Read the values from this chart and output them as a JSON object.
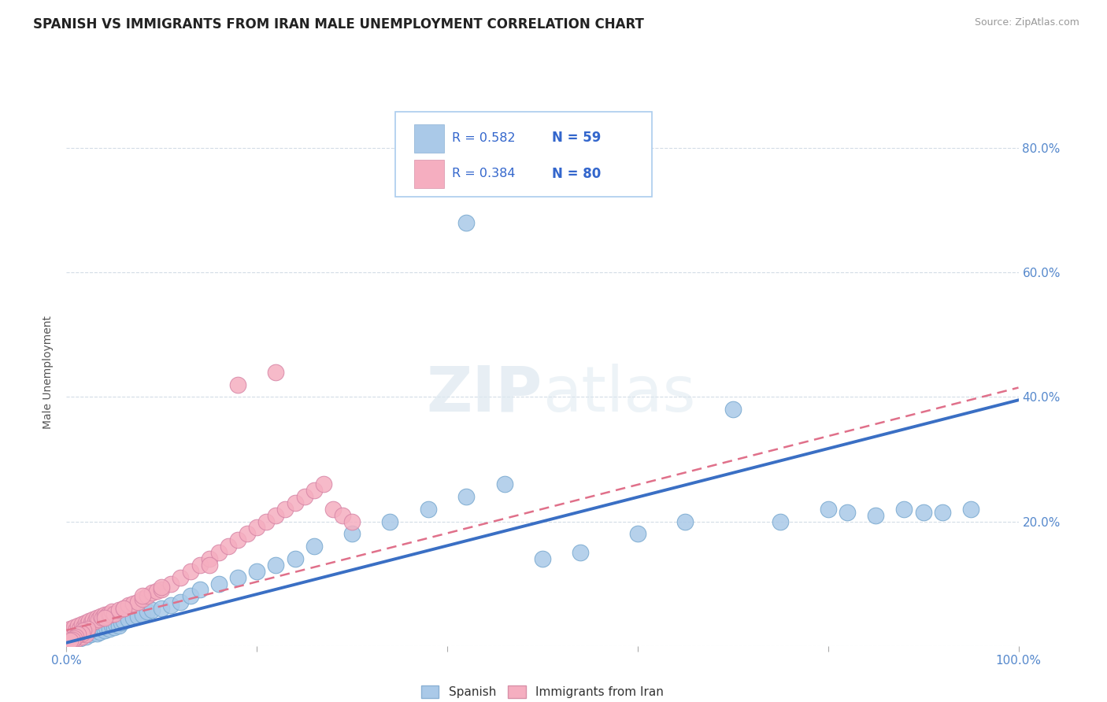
{
  "title": "SPANISH VS IMMIGRANTS FROM IRAN MALE UNEMPLOYMENT CORRELATION CHART",
  "source": "Source: ZipAtlas.com",
  "ylabel": "Male Unemployment",
  "xlim": [
    0,
    1
  ],
  "ylim": [
    0,
    0.88
  ],
  "xtick_positions": [
    0.0,
    0.2,
    0.4,
    0.6,
    0.8,
    1.0
  ],
  "xtick_labels": [
    "0.0%",
    "",
    "",
    "",
    "",
    "100.0%"
  ],
  "ytick_positions": [
    0.0,
    0.2,
    0.4,
    0.6,
    0.8
  ],
  "ytick_labels": [
    "",
    "20.0%",
    "40.0%",
    "60.0%",
    "80.0%"
  ],
  "legend_r1": "R = 0.582",
  "legend_n1": "N = 59",
  "legend_r2": "R = 0.384",
  "legend_n2": "N = 80",
  "spanish_color": "#aac9e8",
  "iran_color": "#f5aec0",
  "trend_blue": "#3a6fc4",
  "trend_pink": "#e0708a",
  "background_color": "#ffffff",
  "grid_color": "#c8d4e0",
  "watermark": "ZIPatlas",
  "title_fontsize": 12,
  "tick_color": "#5588cc",
  "note_color": "#999999",
  "spanish_x": [
    0.005,
    0.008,
    0.01,
    0.012,
    0.015,
    0.018,
    0.02,
    0.022,
    0.025,
    0.028,
    0.03,
    0.032,
    0.035,
    0.038,
    0.04,
    0.042,
    0.045,
    0.048,
    0.05,
    0.052,
    0.055,
    0.058,
    0.06,
    0.065,
    0.07,
    0.075,
    0.08,
    0.085,
    0.09,
    0.1,
    0.11,
    0.12,
    0.13,
    0.14,
    0.16,
    0.18,
    0.2,
    0.22,
    0.24,
    0.26,
    0.3,
    0.34,
    0.38,
    0.42,
    0.46,
    0.5,
    0.54,
    0.6,
    0.65,
    0.7,
    0.75,
    0.8,
    0.82,
    0.85,
    0.88,
    0.9,
    0.92,
    0.95,
    0.42
  ],
  "spanish_y": [
    0.008,
    0.01,
    0.012,
    0.015,
    0.012,
    0.018,
    0.015,
    0.02,
    0.018,
    0.022,
    0.025,
    0.02,
    0.022,
    0.028,
    0.025,
    0.03,
    0.028,
    0.032,
    0.03,
    0.035,
    0.032,
    0.038,
    0.04,
    0.042,
    0.045,
    0.048,
    0.05,
    0.055,
    0.058,
    0.06,
    0.065,
    0.07,
    0.08,
    0.09,
    0.1,
    0.11,
    0.12,
    0.13,
    0.14,
    0.16,
    0.18,
    0.2,
    0.22,
    0.24,
    0.26,
    0.14,
    0.15,
    0.18,
    0.2,
    0.38,
    0.2,
    0.22,
    0.215,
    0.21,
    0.22,
    0.215,
    0.215,
    0.22,
    0.68
  ],
  "iran_x": [
    0.002,
    0.004,
    0.006,
    0.008,
    0.01,
    0.012,
    0.014,
    0.016,
    0.018,
    0.02,
    0.002,
    0.004,
    0.006,
    0.008,
    0.01,
    0.012,
    0.014,
    0.016,
    0.018,
    0.02,
    0.022,
    0.024,
    0.026,
    0.028,
    0.03,
    0.032,
    0.034,
    0.036,
    0.038,
    0.04,
    0.042,
    0.044,
    0.046,
    0.048,
    0.05,
    0.055,
    0.06,
    0.065,
    0.07,
    0.075,
    0.08,
    0.085,
    0.09,
    0.095,
    0.1,
    0.11,
    0.12,
    0.13,
    0.14,
    0.15,
    0.16,
    0.17,
    0.18,
    0.19,
    0.2,
    0.21,
    0.22,
    0.23,
    0.24,
    0.25,
    0.26,
    0.27,
    0.28,
    0.29,
    0.3,
    0.22,
    0.18,
    0.15,
    0.1,
    0.08,
    0.06,
    0.04,
    0.022,
    0.018,
    0.016,
    0.012,
    0.01,
    0.008,
    0.006,
    0.004
  ],
  "iran_y": [
    0.005,
    0.008,
    0.01,
    0.012,
    0.015,
    0.012,
    0.018,
    0.015,
    0.02,
    0.018,
    0.025,
    0.028,
    0.022,
    0.03,
    0.025,
    0.032,
    0.028,
    0.035,
    0.03,
    0.038,
    0.035,
    0.04,
    0.038,
    0.042,
    0.04,
    0.045,
    0.042,
    0.048,
    0.045,
    0.05,
    0.048,
    0.052,
    0.05,
    0.055,
    0.052,
    0.058,
    0.06,
    0.065,
    0.068,
    0.07,
    0.075,
    0.08,
    0.085,
    0.088,
    0.09,
    0.1,
    0.11,
    0.12,
    0.13,
    0.14,
    0.15,
    0.16,
    0.17,
    0.18,
    0.19,
    0.2,
    0.21,
    0.22,
    0.23,
    0.24,
    0.25,
    0.26,
    0.22,
    0.21,
    0.2,
    0.44,
    0.42,
    0.13,
    0.095,
    0.08,
    0.06,
    0.045,
    0.028,
    0.025,
    0.02,
    0.018,
    0.015,
    0.012,
    0.01,
    0.008
  ],
  "blue_trend_x": [
    0.0,
    1.0
  ],
  "blue_trend_y": [
    0.005,
    0.395
  ],
  "pink_trend_x": [
    0.0,
    1.0
  ],
  "pink_trend_y": [
    0.025,
    0.415
  ]
}
